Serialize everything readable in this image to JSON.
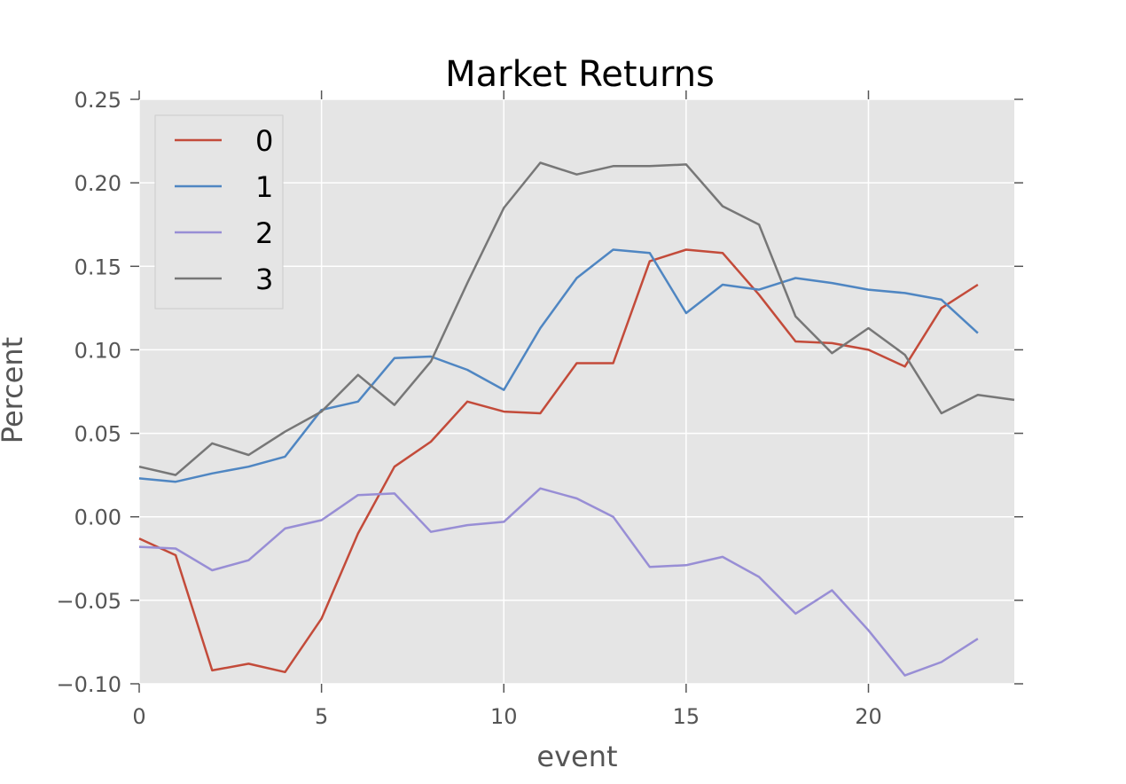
{
  "chart_data": {
    "type": "line",
    "title": "Market Returns",
    "xlabel": "event",
    "ylabel": "Percent",
    "xlim": [
      0,
      24
    ],
    "ylim": [
      -0.1,
      0.25
    ],
    "xticks": [
      0,
      5,
      10,
      15,
      20
    ],
    "xtick_labels": [
      "0",
      "5",
      "10",
      "15",
      "20"
    ],
    "yticks": [
      -0.1,
      -0.05,
      0.0,
      0.05,
      0.1,
      0.15,
      0.2,
      0.25
    ],
    "ytick_labels": [
      "−0.10",
      "−0.05",
      "0.00",
      "0.05",
      "0.10",
      "0.15",
      "0.20",
      "0.25"
    ],
    "grid": true,
    "background": "#e5e5e5",
    "legend_position": "top-left",
    "series": [
      {
        "name": "0",
        "color": "#c34b3a",
        "x": [
          0,
          1,
          2,
          3,
          4,
          5,
          6,
          7,
          8,
          9,
          10,
          11,
          12,
          13,
          14,
          15,
          16,
          17,
          18,
          19,
          20,
          21,
          22,
          23
        ],
        "y": [
          -0.013,
          -0.023,
          -0.092,
          -0.088,
          -0.093,
          -0.061,
          -0.01,
          0.03,
          0.045,
          0.069,
          0.063,
          0.062,
          0.092,
          0.092,
          0.153,
          0.16,
          0.158,
          0.133,
          0.105,
          0.104,
          0.1,
          0.09,
          0.125,
          0.139
        ]
      },
      {
        "name": "1",
        "color": "#4f86c2",
        "x": [
          0,
          1,
          2,
          3,
          4,
          5,
          6,
          7,
          8,
          9,
          10,
          11,
          12,
          13,
          14,
          15,
          16,
          17,
          18,
          19,
          20,
          21,
          22,
          23
        ],
        "y": [
          0.023,
          0.021,
          0.026,
          0.03,
          0.036,
          0.064,
          0.069,
          0.095,
          0.096,
          0.088,
          0.076,
          0.113,
          0.143,
          0.16,
          0.158,
          0.122,
          0.139,
          0.136,
          0.143,
          0.14,
          0.136,
          0.134,
          0.13,
          0.11
        ]
      },
      {
        "name": "2",
        "color": "#988ed5",
        "x": [
          0,
          1,
          2,
          3,
          4,
          5,
          6,
          7,
          8,
          9,
          10,
          11,
          12,
          13,
          14,
          15,
          16,
          17,
          18,
          19,
          20,
          21,
          22,
          23
        ],
        "y": [
          -0.018,
          -0.019,
          -0.032,
          -0.026,
          -0.007,
          -0.002,
          0.013,
          0.014,
          -0.009,
          -0.005,
          -0.003,
          0.017,
          0.011,
          0.0,
          -0.03,
          -0.029,
          -0.024,
          -0.036,
          -0.058,
          -0.044,
          -0.068,
          -0.095,
          -0.087,
          -0.073
        ]
      },
      {
        "name": "3",
        "color": "#777777",
        "x": [
          0,
          1,
          2,
          3,
          4,
          5,
          6,
          7,
          8,
          9,
          10,
          11,
          12,
          13,
          14,
          15,
          16,
          17,
          18,
          19,
          20,
          21,
          22,
          23,
          24
        ],
        "y": [
          0.03,
          0.025,
          0.044,
          0.037,
          0.051,
          0.063,
          0.085,
          0.067,
          0.093,
          0.14,
          0.185,
          0.212,
          0.205,
          0.21,
          0.21,
          0.211,
          0.186,
          0.175,
          0.12,
          0.098,
          0.113,
          0.097,
          0.062,
          0.073,
          0.07
        ]
      }
    ]
  }
}
